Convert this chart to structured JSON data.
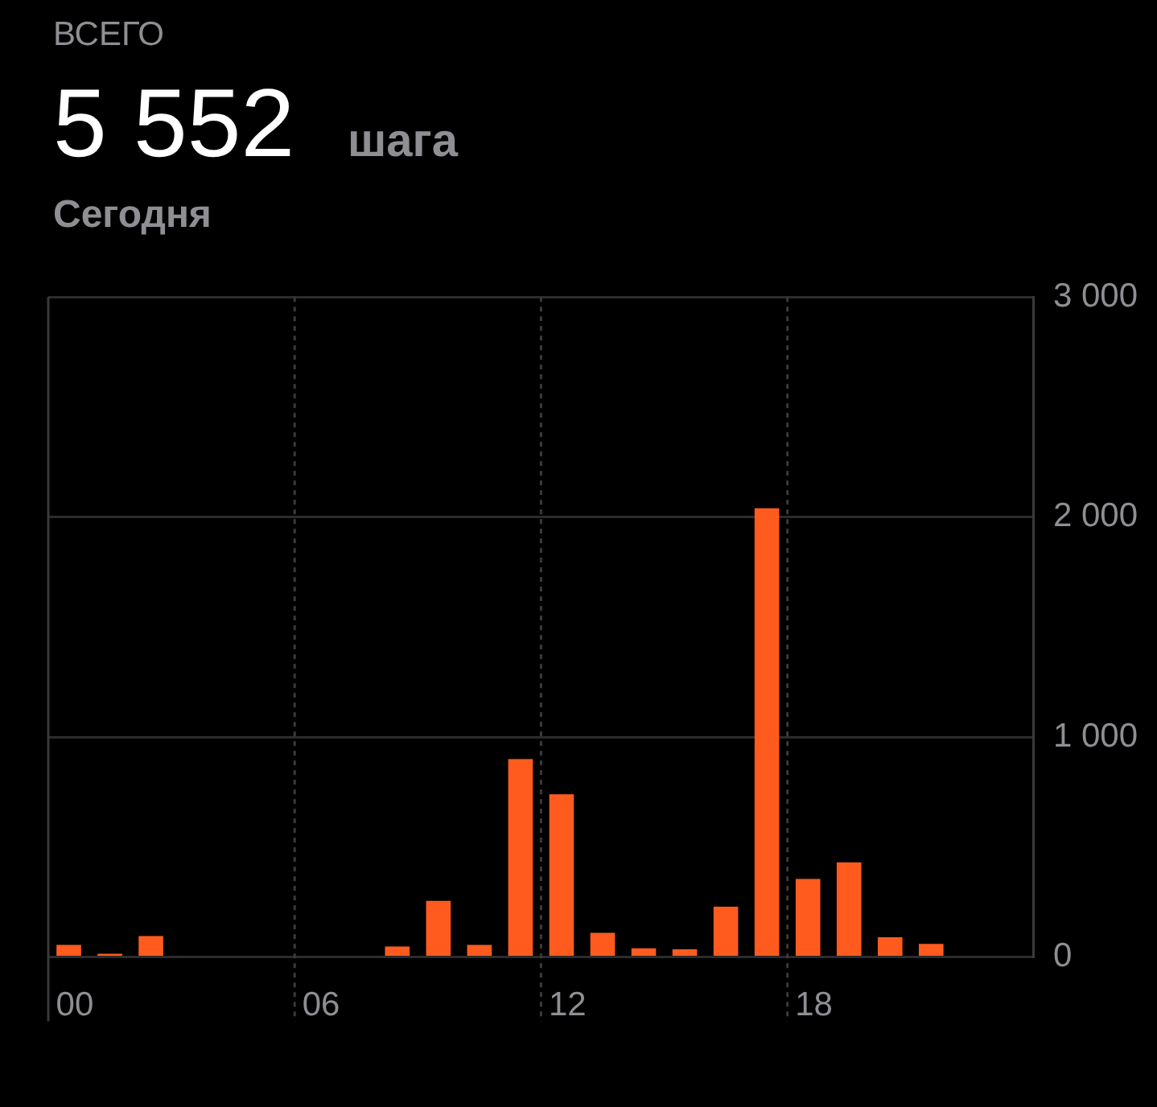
{
  "chart_data": {
    "type": "bar",
    "subtitle": "ВСЕГО",
    "title": "5 552",
    "annotations": [
      "шага",
      "Сегодня"
    ],
    "categories": [
      "00",
      null,
      null,
      null,
      null,
      null,
      "06",
      null,
      null,
      null,
      null,
      null,
      "12",
      null,
      null,
      null,
      null,
      null,
      "18",
      null,
      null,
      null,
      null,
      null
    ],
    "values": [
      55,
      15,
      95,
      0,
      0,
      0,
      0,
      0,
      48,
      255,
      55,
      900,
      740,
      110,
      40,
      35,
      229,
      2040,
      355,
      430,
      90,
      60,
      0,
      0
    ],
    "color": "#ff5b1f",
    "ylim": [
      0,
      3000
    ],
    "yticks": [
      {
        "value": 0,
        "label": "0"
      },
      {
        "value": 1000,
        "label": "1 000"
      },
      {
        "value": 2000,
        "label": "2 000"
      },
      {
        "value": 3000,
        "label": "3 000"
      }
    ],
    "grid": true
  }
}
